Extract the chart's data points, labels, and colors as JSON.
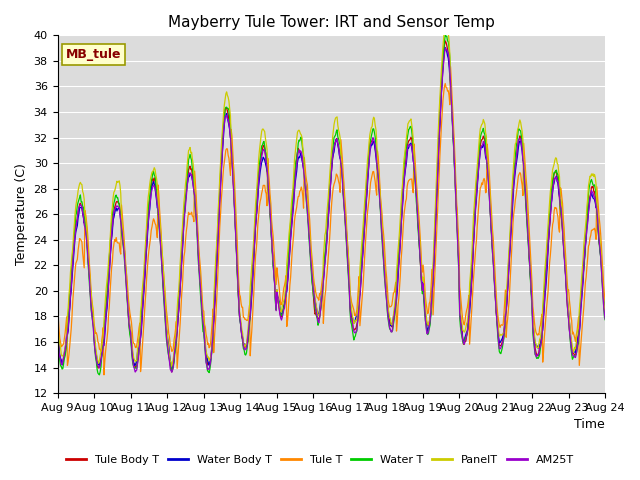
{
  "title": "Mayberry Tule Tower: IRT and Sensor Temp",
  "xlabel": "Time",
  "ylabel": "Temperature (C)",
  "ylim": [
    12,
    40
  ],
  "yticks": [
    12,
    14,
    16,
    18,
    20,
    22,
    24,
    26,
    28,
    30,
    32,
    34,
    36,
    38,
    40
  ],
  "xtick_labels": [
    "Aug 9",
    "Aug 10",
    "Aug 11",
    "Aug 12",
    "Aug 13",
    "Aug 14",
    "Aug 15",
    "Aug 16",
    "Aug 17",
    "Aug 18",
    "Aug 19",
    "Aug 20",
    "Aug 21",
    "Aug 22",
    "Aug 23",
    "Aug 24"
  ],
  "series_colors": {
    "Tule Body T": "#cc0000",
    "Water Body T": "#0000cc",
    "Tule T": "#ff8800",
    "Water T": "#00cc00",
    "PanelT": "#cccc00",
    "AM25T": "#9900cc"
  },
  "series_order": [
    "Tule Body T",
    "Water Body T",
    "Tule T",
    "Water T",
    "PanelT",
    "AM25T"
  ],
  "bg_color": "#dcdcdc",
  "grid_color": "#c8c8c8",
  "station_label": "MB_tule",
  "station_label_color": "#880000",
  "station_box_color": "#ffffcc",
  "station_box_edge": "#999900"
}
